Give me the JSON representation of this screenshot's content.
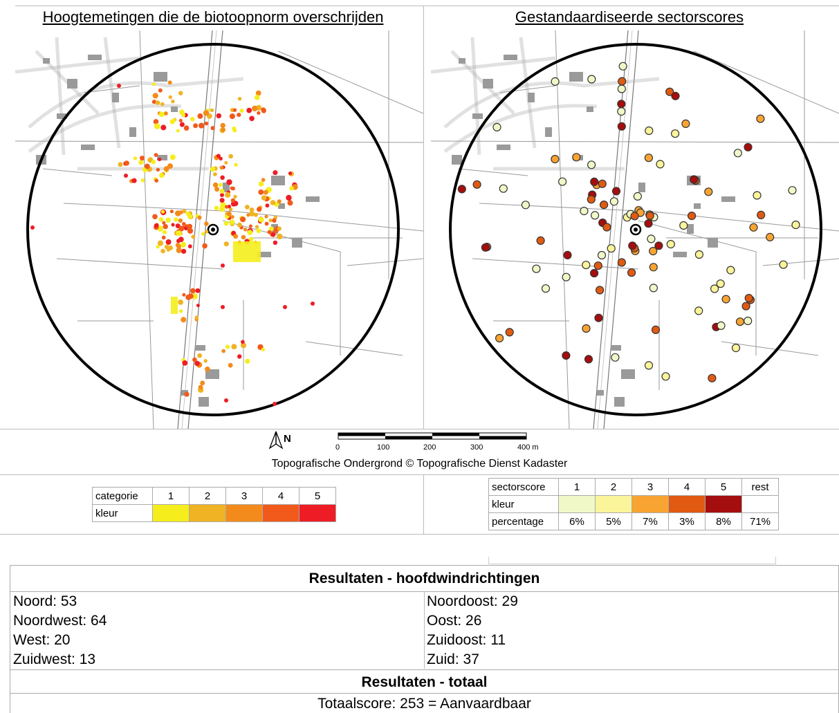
{
  "panels": {
    "left_title": "Hoogtemetingen die de biotoopnorm overschrijden",
    "right_title": "Gestandaardiseerde sectorscores"
  },
  "north_label": "N",
  "scale_labels": [
    "0",
    "100",
    "200",
    "300",
    "400 m"
  ],
  "copyright": "Topografische Ondergrond © Topografische Dienst Kadaster",
  "category_legend": {
    "header": "categorie",
    "row_label": "kleur",
    "categories": [
      "1",
      "2",
      "3",
      "4",
      "5"
    ],
    "colors": [
      "#f5ee1c",
      "#f0b323",
      "#f38b1c",
      "#f15a1b",
      "#ee1c25"
    ]
  },
  "sector_legend": {
    "header": "sectorscore",
    "color_label": "kleur",
    "percentage_label": "percentage",
    "scores": [
      "1",
      "2",
      "3",
      "4",
      "5",
      "rest"
    ],
    "colors": [
      "#f0f8c8",
      "#faf49a",
      "#f8a432",
      "#e05a12",
      "#a50e0e",
      "#ffffff"
    ],
    "percentages": [
      "6%",
      "5%",
      "7%",
      "3%",
      "8%",
      "71%"
    ]
  },
  "results": {
    "directions_title": "Resultaten - hoofdwindrichtingen",
    "left_column": [
      "Noord: 53",
      "Noordwest: 64",
      "West: 20",
      "Zuidwest: 13"
    ],
    "right_column": [
      "Noordoost: 29",
      "Oost: 26",
      "Zuidoost: 11",
      "Zuid: 37"
    ],
    "total_title": "Resultaten - totaal",
    "total_line": "Totaalscore: 253 = Aanvaardbaar"
  }
}
